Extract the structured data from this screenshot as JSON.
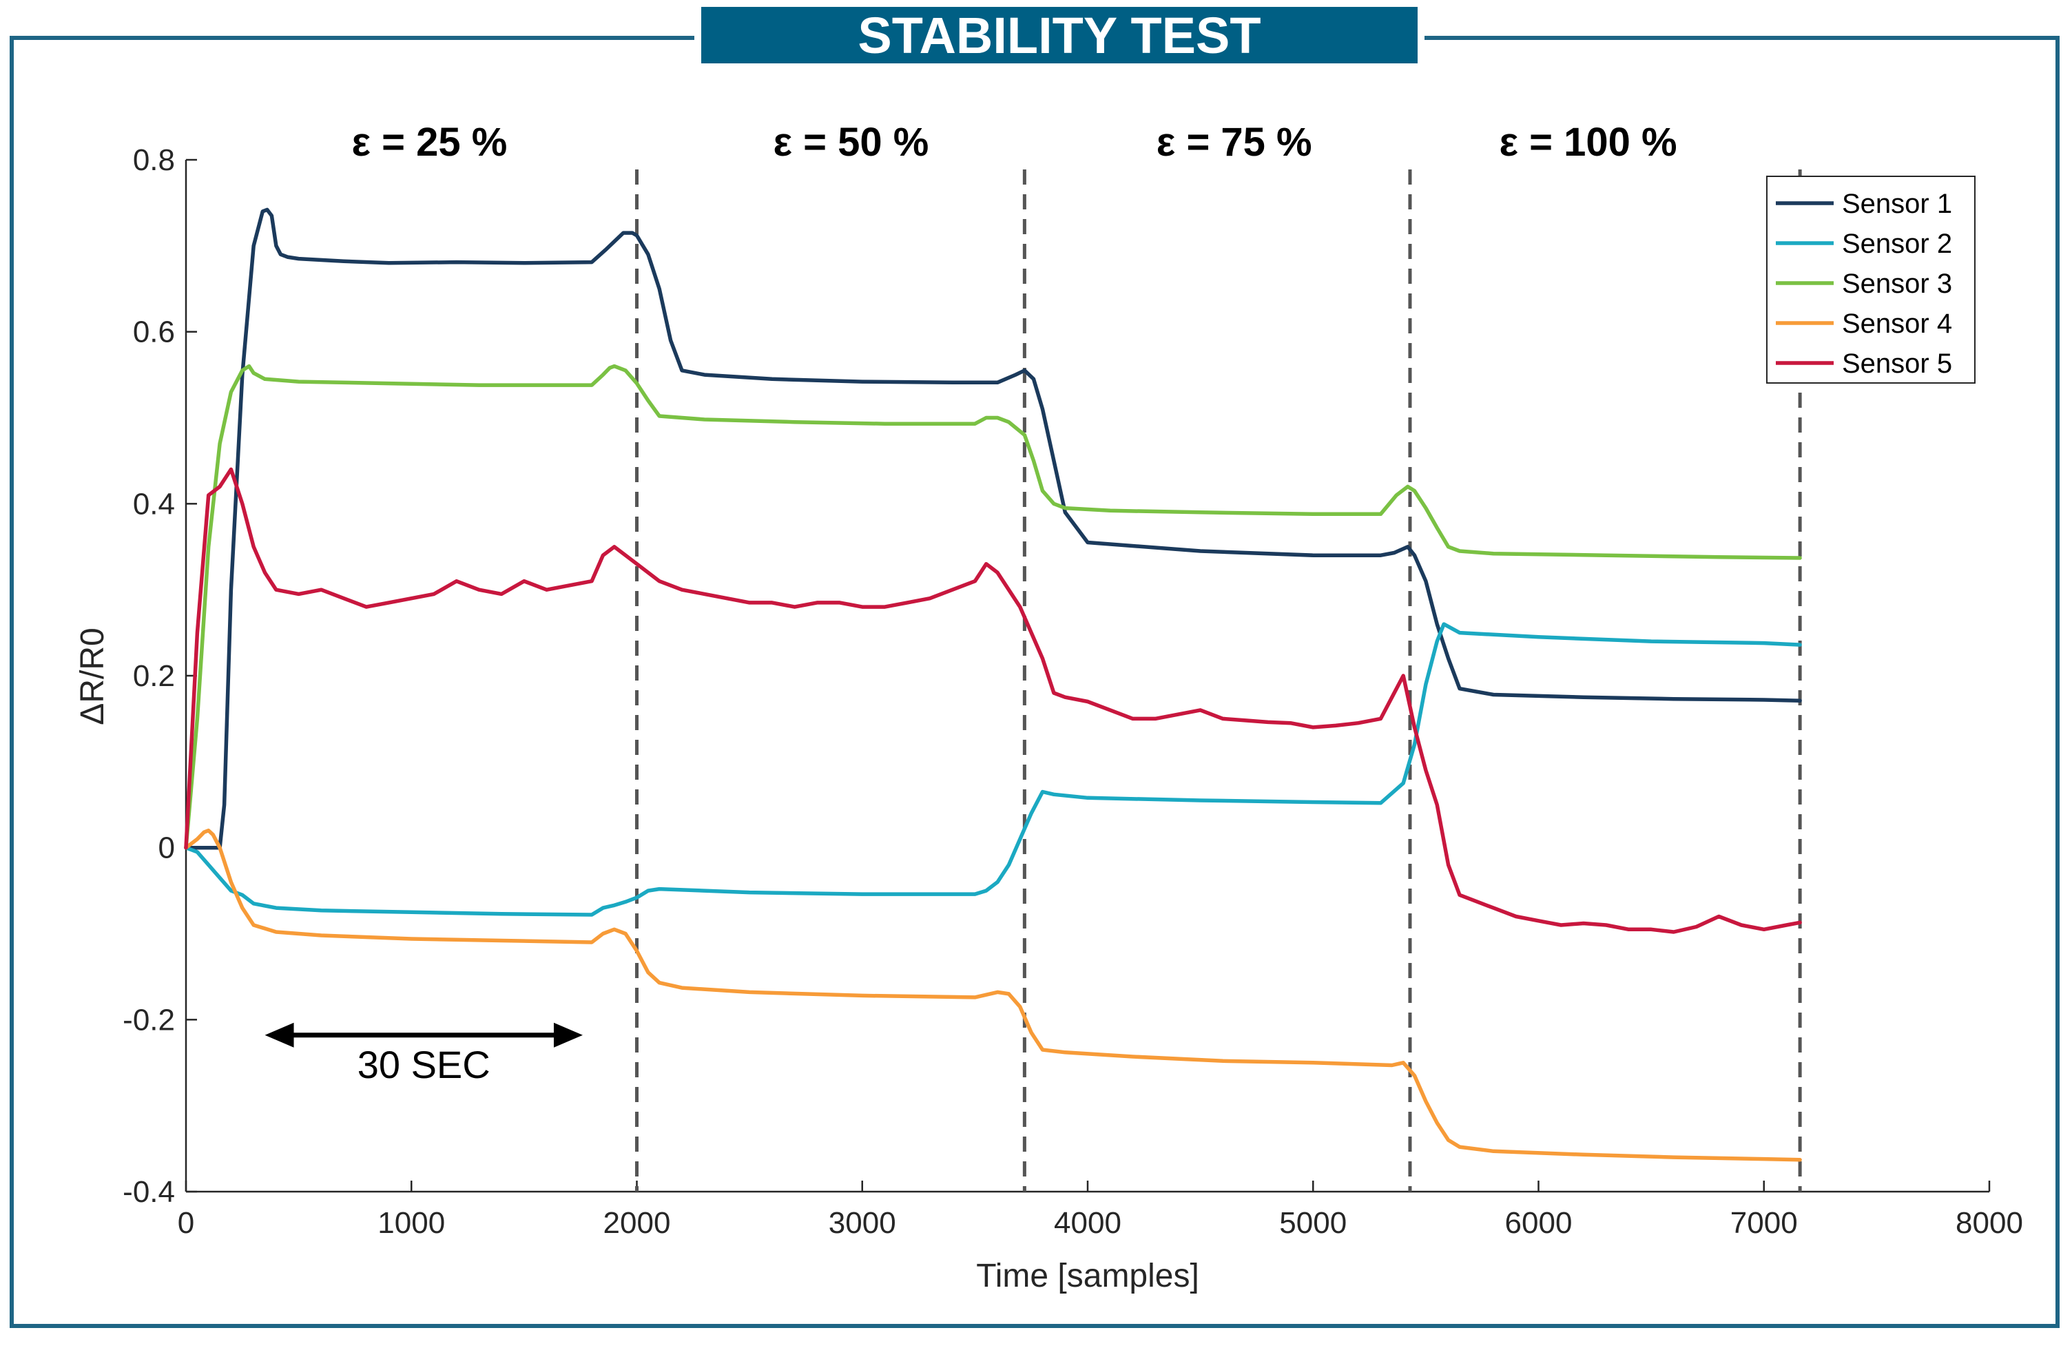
{
  "title": "STABILITY TEST",
  "chart_data": {
    "type": "line",
    "xlabel": "Time [samples]",
    "ylabel": "ΔR/R0",
    "xlim": [
      0,
      8000
    ],
    "ylim": [
      -0.4,
      0.8
    ],
    "xticks": [
      0,
      1000,
      2000,
      3000,
      4000,
      5000,
      6000,
      7000,
      8000
    ],
    "yticks": [
      -0.4,
      -0.2,
      0,
      0.2,
      0.4,
      0.6,
      0.8
    ],
    "ytick_labels": [
      "-0.4",
      "-0.2",
      "0",
      "0.2",
      "0.4",
      "0.6",
      "0.8"
    ],
    "phase_boundaries": [
      2000,
      3720,
      5430,
      7160
    ],
    "phases": [
      {
        "label": "ε = 25 %",
        "x": 1080
      },
      {
        "label": "ε = 50 %",
        "x": 2950
      },
      {
        "label": "ε = 75 %",
        "x": 4650
      },
      {
        "label": "ε = 100 %",
        "x": 6220
      }
    ],
    "annotation": {
      "text": "30 SEC",
      "x_start": 350,
      "x_end": 1760,
      "y": -0.218,
      "label_y": -0.268
    },
    "legend_position": "top-right",
    "series": [
      {
        "name": "Sensor 1",
        "color": "#1b3a5c",
        "x": [
          0,
          150,
          170,
          200,
          250,
          300,
          340,
          360,
          380,
          400,
          420,
          450,
          500,
          700,
          900,
          1200,
          1500,
          1800,
          1860,
          1900,
          1940,
          1980,
          2000,
          2050,
          2100,
          2150,
          2200,
          2300,
          2600,
          3000,
          3400,
          3600,
          3680,
          3720,
          3760,
          3800,
          3850,
          3900,
          4000,
          4500,
          5000,
          5300,
          5360,
          5420,
          5450,
          5500,
          5550,
          5600,
          5650,
          5800,
          6200,
          6600,
          7000,
          7160
        ],
        "y": [
          0.0,
          0.0,
          0.05,
          0.3,
          0.55,
          0.7,
          0.74,
          0.742,
          0.735,
          0.7,
          0.69,
          0.687,
          0.685,
          0.682,
          0.68,
          0.681,
          0.68,
          0.681,
          0.695,
          0.705,
          0.715,
          0.715,
          0.712,
          0.69,
          0.65,
          0.59,
          0.555,
          0.55,
          0.545,
          0.542,
          0.541,
          0.541,
          0.55,
          0.555,
          0.545,
          0.51,
          0.45,
          0.39,
          0.355,
          0.345,
          0.34,
          0.34,
          0.343,
          0.35,
          0.34,
          0.31,
          0.26,
          0.22,
          0.185,
          0.178,
          0.175,
          0.173,
          0.172,
          0.171
        ]
      },
      {
        "name": "Sensor 2",
        "color": "#1ba9c2",
        "x": [
          0,
          50,
          100,
          200,
          250,
          300,
          400,
          600,
          1000,
          1400,
          1800,
          1850,
          1900,
          1950,
          2000,
          2050,
          2100,
          2500,
          3000,
          3500,
          3550,
          3600,
          3650,
          3700,
          3750,
          3800,
          3850,
          4000,
          4500,
          5000,
          5300,
          5400,
          5450,
          5500,
          5550,
          5580,
          5650,
          6000,
          6500,
          7000,
          7160
        ],
        "y": [
          0.0,
          -0.005,
          -0.02,
          -0.05,
          -0.055,
          -0.065,
          -0.07,
          -0.073,
          -0.075,
          -0.077,
          -0.078,
          -0.07,
          -0.067,
          -0.063,
          -0.058,
          -0.05,
          -0.048,
          -0.052,
          -0.054,
          -0.054,
          -0.05,
          -0.04,
          -0.02,
          0.01,
          0.04,
          0.065,
          0.062,
          0.058,
          0.055,
          0.053,
          0.052,
          0.075,
          0.12,
          0.19,
          0.24,
          0.26,
          0.25,
          0.245,
          0.24,
          0.238,
          0.236
        ]
      },
      {
        "name": "Sensor 3",
        "color": "#7ac143",
        "x": [
          0,
          50,
          100,
          150,
          200,
          250,
          280,
          300,
          350,
          500,
          900,
          1300,
          1800,
          1850,
          1880,
          1900,
          1950,
          2000,
          2050,
          2100,
          2300,
          2700,
          3100,
          3500,
          3550,
          3600,
          3650,
          3720,
          3760,
          3800,
          3850,
          3900,
          4100,
          4500,
          5000,
          5300,
          5370,
          5420,
          5450,
          5500,
          5550,
          5600,
          5650,
          5800,
          6300,
          6800,
          7160
        ],
        "y": [
          0.0,
          0.15,
          0.35,
          0.47,
          0.53,
          0.555,
          0.56,
          0.552,
          0.545,
          0.542,
          0.54,
          0.538,
          0.538,
          0.55,
          0.558,
          0.56,
          0.555,
          0.54,
          0.52,
          0.502,
          0.498,
          0.495,
          0.493,
          0.493,
          0.5,
          0.5,
          0.495,
          0.48,
          0.45,
          0.415,
          0.4,
          0.395,
          0.392,
          0.39,
          0.388,
          0.388,
          0.41,
          0.42,
          0.415,
          0.395,
          0.372,
          0.35,
          0.345,
          0.342,
          0.34,
          0.338,
          0.337
        ]
      },
      {
        "name": "Sensor 4",
        "color": "#f79b38",
        "x": [
          0,
          50,
          80,
          100,
          120,
          150,
          200,
          250,
          300,
          400,
          600,
          1000,
          1400,
          1800,
          1850,
          1900,
          1950,
          2000,
          2050,
          2100,
          2200,
          2500,
          3000,
          3500,
          3600,
          3650,
          3700,
          3750,
          3800,
          3900,
          4200,
          4600,
          5000,
          5350,
          5400,
          5450,
          5500,
          5550,
          5600,
          5650,
          5800,
          6200,
          6600,
          7000,
          7160
        ],
        "y": [
          0.0,
          0.01,
          0.018,
          0.02,
          0.015,
          0.0,
          -0.04,
          -0.07,
          -0.09,
          -0.098,
          -0.102,
          -0.106,
          -0.108,
          -0.11,
          -0.1,
          -0.095,
          -0.1,
          -0.12,
          -0.145,
          -0.157,
          -0.163,
          -0.168,
          -0.172,
          -0.174,
          -0.168,
          -0.17,
          -0.185,
          -0.215,
          -0.235,
          -0.238,
          -0.243,
          -0.248,
          -0.25,
          -0.253,
          -0.25,
          -0.265,
          -0.295,
          -0.32,
          -0.34,
          -0.348,
          -0.353,
          -0.357,
          -0.36,
          -0.362,
          -0.363
        ]
      },
      {
        "name": "Sensor 5",
        "color": "#c8173e",
        "x": [
          0,
          50,
          100,
          150,
          200,
          250,
          300,
          350,
          400,
          500,
          600,
          700,
          800,
          900,
          1000,
          1100,
          1200,
          1300,
          1400,
          1500,
          1600,
          1700,
          1800,
          1850,
          1900,
          1950,
          2000,
          2100,
          2200,
          2300,
          2400,
          2500,
          2600,
          2700,
          2800,
          2900,
          3000,
          3100,
          3200,
          3300,
          3400,
          3500,
          3550,
          3600,
          3650,
          3700,
          3750,
          3800,
          3850,
          3900,
          4000,
          4100,
          4200,
          4300,
          4400,
          4500,
          4600,
          4700,
          4800,
          4900,
          5000,
          5100,
          5200,
          5300,
          5350,
          5400,
          5450,
          5500,
          5550,
          5600,
          5650,
          5700,
          5800,
          5900,
          6000,
          6100,
          6200,
          6300,
          6400,
          6500,
          6600,
          6700,
          6800,
          6900,
          7000,
          7100,
          7160
        ],
        "y": [
          0.0,
          0.25,
          0.41,
          0.42,
          0.44,
          0.4,
          0.35,
          0.32,
          0.3,
          0.295,
          0.3,
          0.29,
          0.28,
          0.285,
          0.29,
          0.295,
          0.31,
          0.3,
          0.295,
          0.31,
          0.3,
          0.305,
          0.31,
          0.34,
          0.35,
          0.34,
          0.33,
          0.31,
          0.3,
          0.295,
          0.29,
          0.285,
          0.285,
          0.28,
          0.285,
          0.285,
          0.28,
          0.28,
          0.285,
          0.29,
          0.3,
          0.31,
          0.33,
          0.32,
          0.3,
          0.28,
          0.25,
          0.22,
          0.18,
          0.175,
          0.17,
          0.16,
          0.15,
          0.15,
          0.155,
          0.16,
          0.15,
          0.148,
          0.146,
          0.145,
          0.14,
          0.142,
          0.145,
          0.15,
          0.175,
          0.2,
          0.14,
          0.09,
          0.05,
          -0.02,
          -0.055,
          -0.06,
          -0.07,
          -0.08,
          -0.085,
          -0.09,
          -0.088,
          -0.09,
          -0.095,
          -0.095,
          -0.098,
          -0.092,
          -0.08,
          -0.09,
          -0.095,
          -0.09,
          -0.087
        ]
      }
    ]
  }
}
